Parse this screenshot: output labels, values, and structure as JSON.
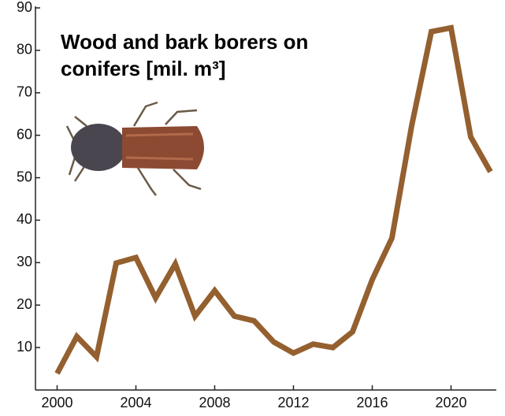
{
  "chart_data": {
    "type": "line",
    "title": "Wood and bark borers on conifers [mil. m³]",
    "x": [
      2000,
      2001,
      2002,
      2003,
      2004,
      2005,
      2006,
      2007,
      2008,
      2009,
      2010,
      2011,
      2012,
      2013,
      2014,
      2015,
      2016,
      2017,
      2018,
      2019,
      2020,
      2021,
      2022
    ],
    "series": [
      {
        "color": "#94602f",
        "values": [
          3.9,
          12.6,
          7.8,
          29.9,
          31.2,
          21.7,
          29.7,
          17.4,
          23.4,
          17.4,
          16.3,
          11.3,
          8.7,
          10.8,
          10,
          13.7,
          26,
          35.8,
          62.2,
          84.4,
          85.3,
          59.6,
          51.4
        ]
      }
    ],
    "xlim": [
      1998.9,
      2022.3
    ],
    "xticks": [
      2000,
      2004,
      2008,
      2012,
      2016,
      2020
    ],
    "ylim": [
      0,
      90
    ],
    "yticks": [
      10,
      20,
      30,
      40,
      50,
      60,
      70,
      80,
      90
    ]
  }
}
